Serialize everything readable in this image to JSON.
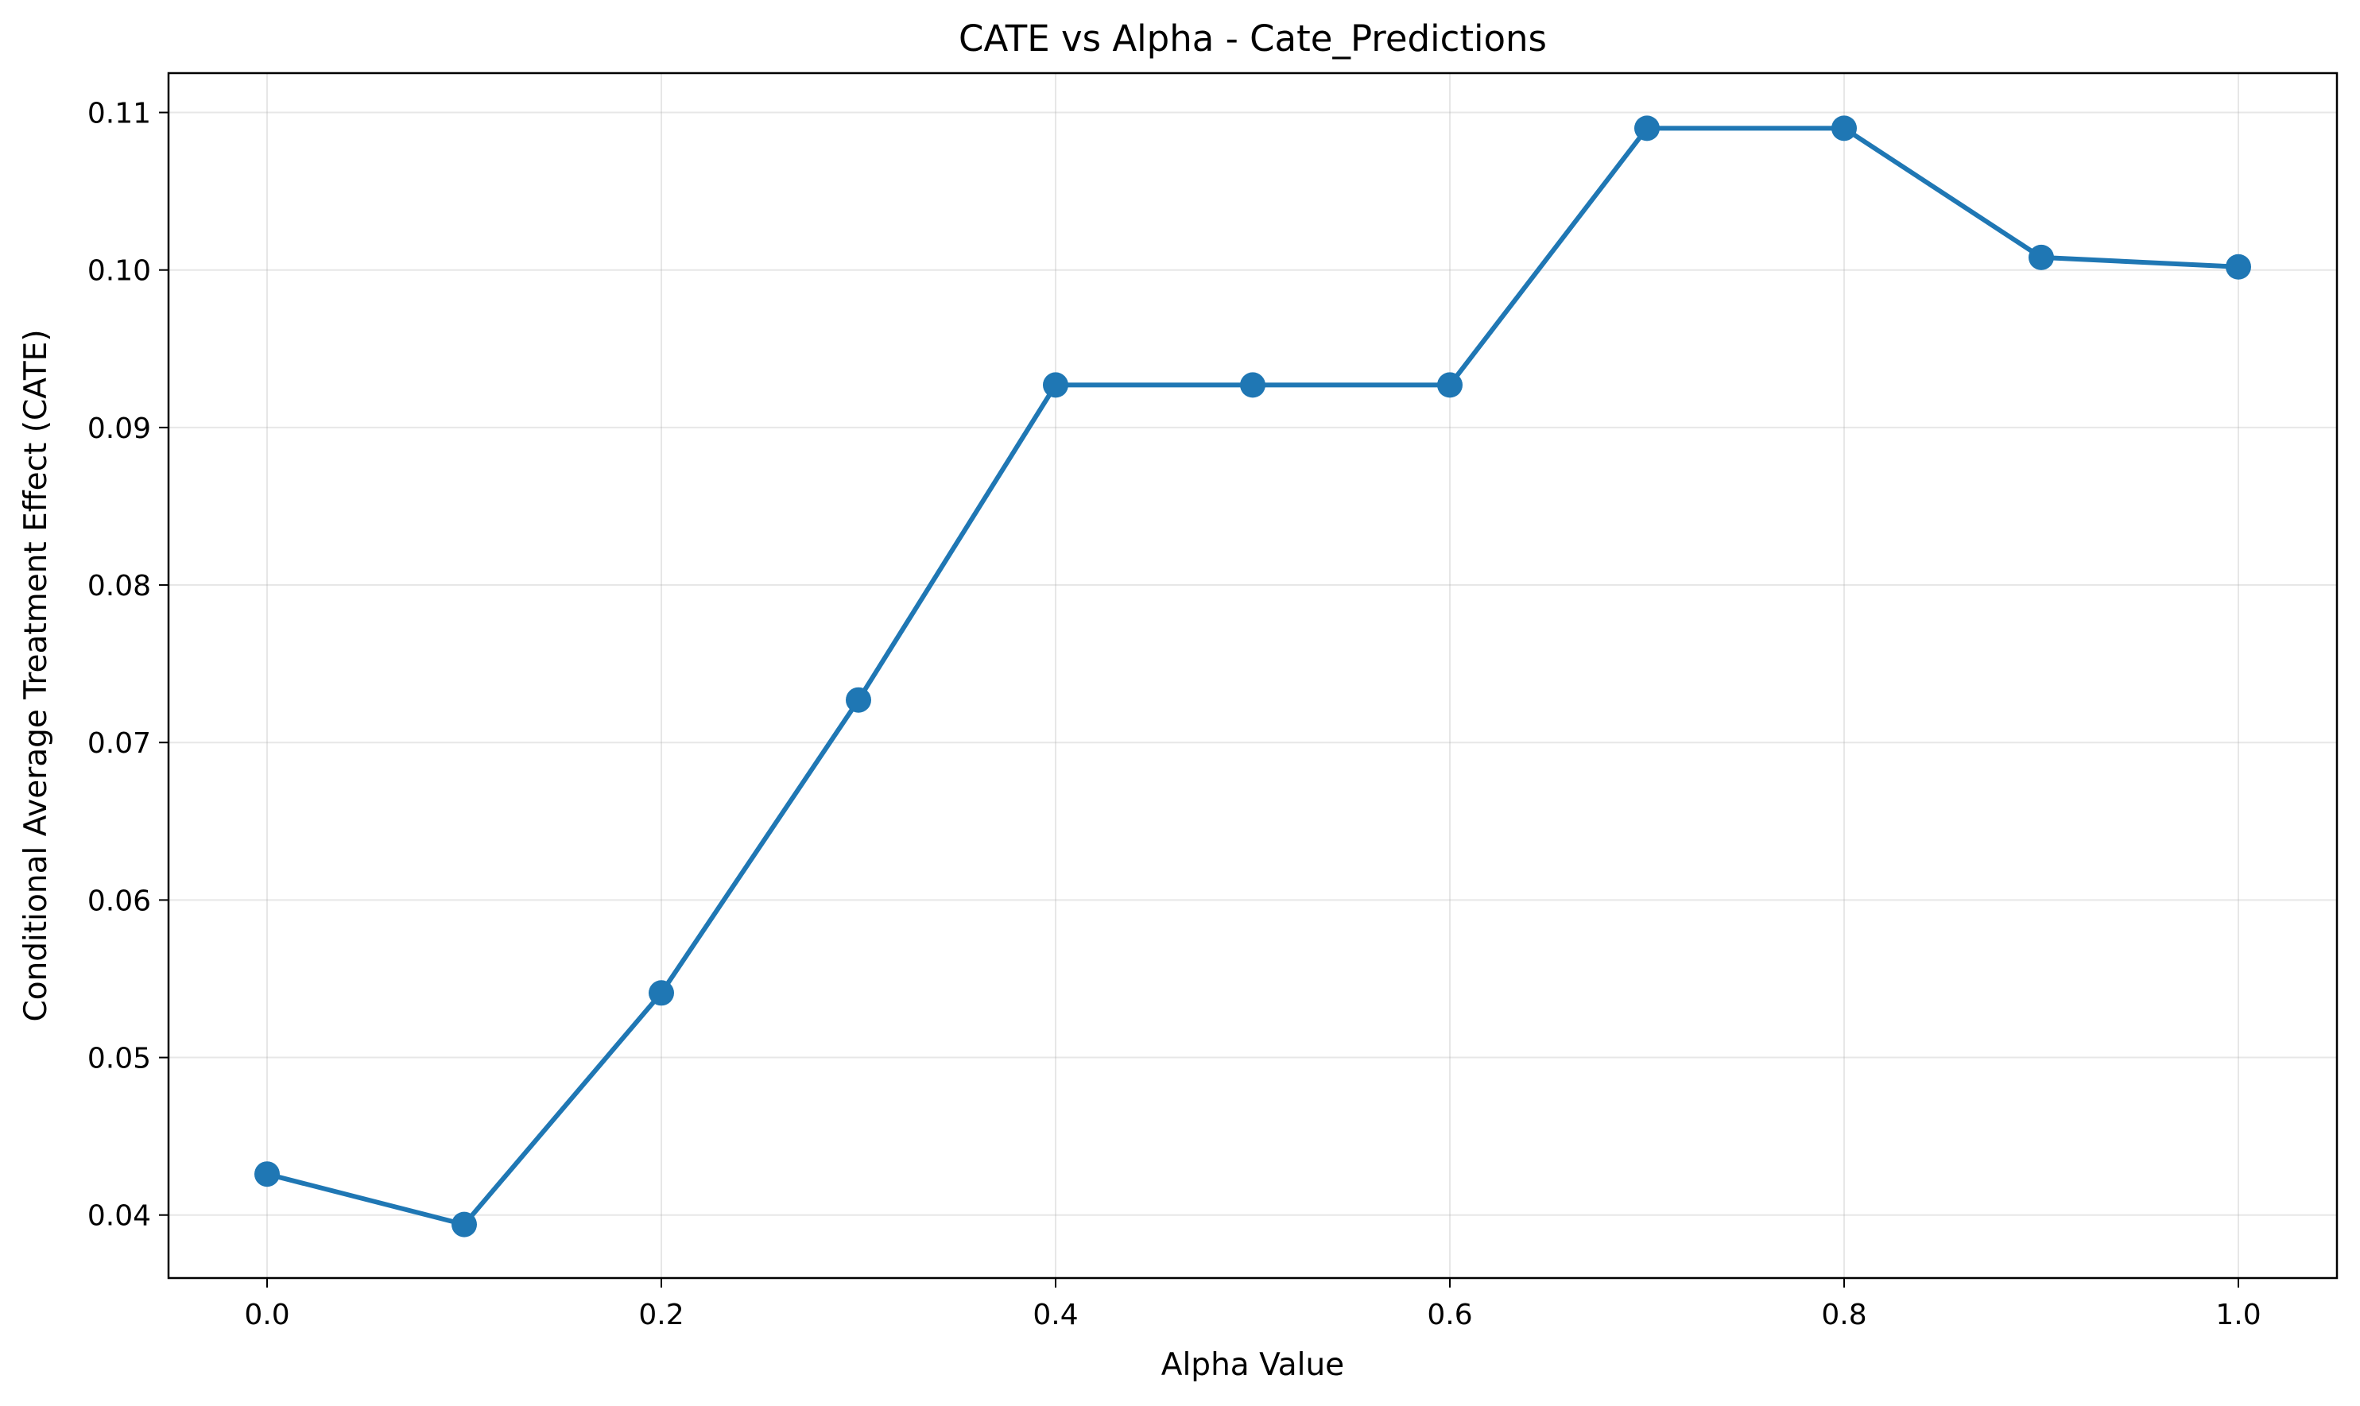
{
  "chart_data": {
    "type": "line",
    "title": "CATE vs Alpha - Cate_Predictions",
    "xlabel": "Alpha Value",
    "ylabel": "Conditional Average Treatment Effect (CATE)",
    "xlim": [
      -0.05,
      1.05
    ],
    "ylim": [
      0.036,
      0.1125
    ],
    "x_ticks": [
      0.0,
      0.2,
      0.4,
      0.6,
      0.8,
      1.0
    ],
    "x_tick_labels": [
      "0.0",
      "0.2",
      "0.4",
      "0.6",
      "0.8",
      "1.0"
    ],
    "y_ticks": [
      0.04,
      0.05,
      0.06,
      0.07,
      0.08,
      0.09,
      0.1,
      0.11
    ],
    "y_tick_labels": [
      "0.04",
      "0.05",
      "0.06",
      "0.07",
      "0.08",
      "0.09",
      "0.10",
      "0.11"
    ],
    "grid": true,
    "series": [
      {
        "color": "#1f77b4",
        "marker": "circle",
        "x": [
          0.0,
          0.1,
          0.2,
          0.3,
          0.4,
          0.5,
          0.6,
          0.7,
          0.8,
          0.9,
          1.0
        ],
        "y": [
          0.0426,
          0.0394,
          0.0541,
          0.0727,
          0.0927,
          0.0927,
          0.0927,
          0.109,
          0.109,
          0.1008,
          0.1002
        ]
      }
    ]
  }
}
